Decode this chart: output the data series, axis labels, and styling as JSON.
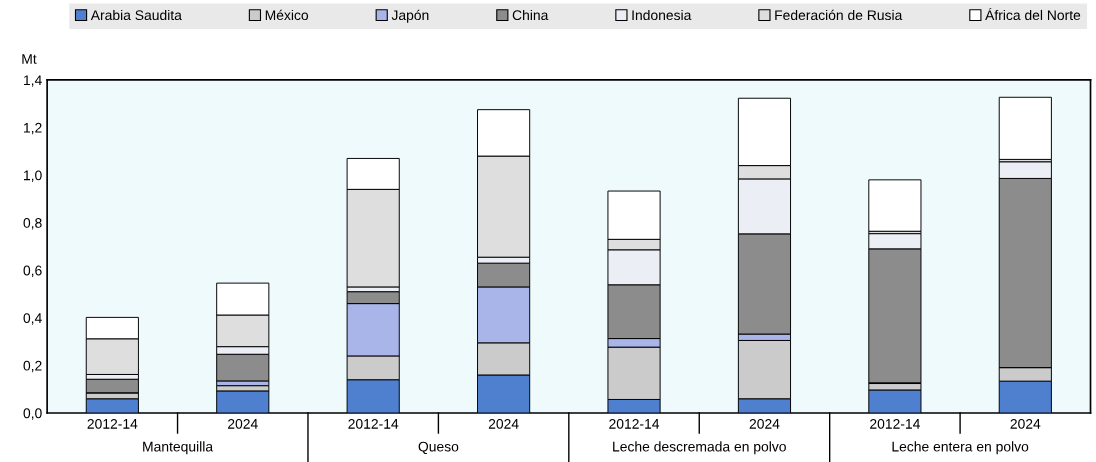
{
  "chart_data": {
    "type": "bar",
    "stacked": true,
    "ylabel": "Mt",
    "categories": [
      "2012-14",
      "2024",
      "2012-14",
      "2024",
      "2012-14",
      "2024",
      "2012-14",
      "2024"
    ],
    "annotations": [
      "Mantequilla",
      "Queso",
      "Leche descremada en polvo",
      "Leche entera en polvo"
    ],
    "series": [
      {
        "name": "Arabia Saudita",
        "color": "#4f7fcf",
        "values": [
          0.06,
          0.093,
          0.14,
          0.16,
          0.057,
          0.06,
          0.097,
          0.134
        ]
      },
      {
        "name": "México",
        "color": "#cbcbcb",
        "values": [
          0.025,
          0.022,
          0.1,
          0.135,
          0.22,
          0.245,
          0.027,
          0.057
        ]
      },
      {
        "name": "Japón",
        "color": "#a9b4e8",
        "values": [
          null,
          0.02,
          0.22,
          0.235,
          0.036,
          0.027,
          0.003,
          null
        ]
      },
      {
        "name": "China",
        "color": "#8c8c8c",
        "values": [
          0.057,
          0.112,
          0.05,
          0.1,
          0.226,
          0.421,
          0.563,
          0.795
        ]
      },
      {
        "name": "Indonesia",
        "color": "#eceef6",
        "values": [
          0.02,
          0.032,
          0.02,
          0.025,
          0.147,
          0.231,
          0.064,
          0.07
        ]
      },
      {
        "name": "Federación de Rusia",
        "color": "#dedede",
        "values": [
          0.15,
          0.133,
          0.41,
          0.425,
          0.044,
          0.056,
          0.01,
          0.01
        ]
      },
      {
        "name": "África del Norte",
        "color": "#ffffff",
        "values": [
          0.09,
          0.134,
          0.13,
          0.195,
          0.203,
          0.283,
          0.216,
          0.261
        ]
      }
    ],
    "ylim": [
      0,
      1.4
    ],
    "yticks": [
      {
        "value": 0,
        "label": "0,0"
      },
      {
        "value": 0.2,
        "label": "0,2"
      },
      {
        "value": 0.4,
        "label": "0,4"
      },
      {
        "value": 0.6,
        "label": "0,6"
      },
      {
        "value": 0.8,
        "label": "0,8"
      },
      {
        "value": 1.0,
        "label": "1,0"
      },
      {
        "value": 1.2,
        "label": "1,2"
      },
      {
        "value": 1.4,
        "label": "1,4"
      }
    ],
    "legend": "top",
    "grid": false
  }
}
